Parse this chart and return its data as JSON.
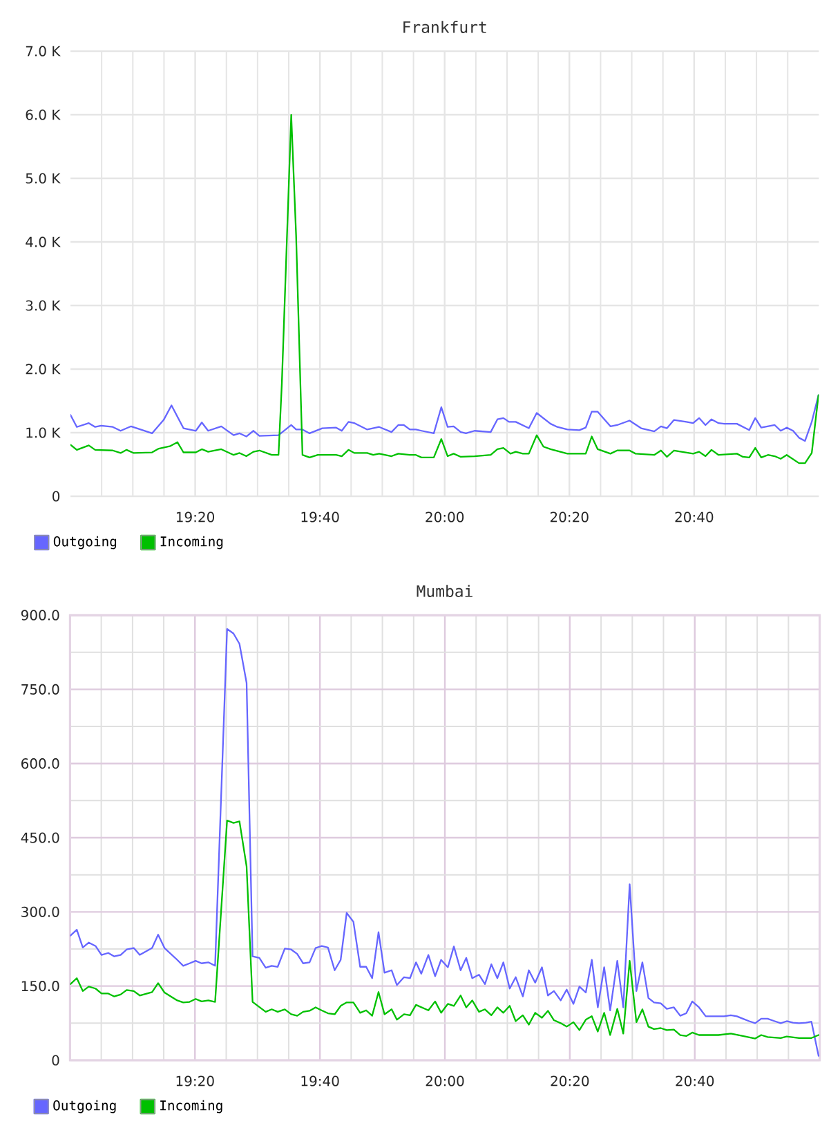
{
  "chart_data": [
    {
      "type": "line",
      "title": "Frankfurt",
      "xlim": [
        19,
        21
      ],
      "ylim": [
        0,
        7000
      ],
      "grid": true,
      "legend": "bottom left",
      "xticks": [
        {
          "value": 19.0833,
          "label": null
        },
        {
          "value": 19.1667,
          "label": null
        },
        {
          "value": 19.25,
          "label": null
        },
        {
          "value": 19.3333,
          "label": "19:20"
        },
        {
          "value": 19.4167,
          "label": null
        },
        {
          "value": 19.5,
          "label": null
        },
        {
          "value": 19.5833,
          "label": null
        },
        {
          "value": 19.6667,
          "label": "19:40"
        },
        {
          "value": 19.75,
          "label": null
        },
        {
          "value": 19.8333,
          "label": null
        },
        {
          "value": 19.9167,
          "label": null
        },
        {
          "value": 20,
          "label": "20:00"
        },
        {
          "value": 20.0833,
          "label": null
        },
        {
          "value": 20.1667,
          "label": null
        },
        {
          "value": 20.25,
          "label": null
        },
        {
          "value": 20.3333,
          "label": "20:20"
        },
        {
          "value": 20.4167,
          "label": null
        },
        {
          "value": 20.5,
          "label": null
        },
        {
          "value": 20.5833,
          "label": null
        },
        {
          "value": 20.6667,
          "label": "20:40"
        },
        {
          "value": 20.75,
          "label": null
        },
        {
          "value": 20.8333,
          "label": null
        },
        {
          "value": 20.9167,
          "label": null
        }
      ],
      "yticks": [
        0,
        {
          "value": 1000,
          "label": "1.0 K"
        },
        {
          "value": 2000,
          "label": "2.0 K"
        },
        {
          "value": 3000,
          "label": "3.0 K"
        },
        {
          "value": 4000,
          "label": "4.0 K"
        },
        {
          "value": 5000,
          "label": "5.0 K"
        },
        {
          "value": 6000,
          "label": "6.0 K"
        },
        {
          "value": 7000,
          "label": "7.0 K"
        }
      ],
      "series": [
        {
          "name": "Outgoing",
          "color": "#6666ff",
          "x": [
            19.0,
            19.017,
            19.049,
            19.066,
            19.082,
            19.113,
            19.134,
            19.162,
            19.218,
            19.249,
            19.27,
            19.302,
            19.335,
            19.351,
            19.368,
            19.403,
            19.436,
            19.452,
            19.47,
            19.489,
            19.505,
            19.556,
            19.59,
            19.603,
            19.62,
            19.639,
            19.673,
            19.71,
            19.725,
            19.743,
            19.759,
            19.793,
            19.825,
            19.858,
            19.876,
            19.891,
            19.907,
            19.923,
            19.938,
            19.971,
            19.991,
            20.008,
            20.024,
            20.043,
            20.057,
            20.08,
            20.123,
            20.141,
            20.157,
            20.172,
            20.19,
            20.225,
            20.246,
            20.283,
            20.301,
            20.328,
            20.36,
            20.377,
            20.393,
            20.409,
            20.443,
            20.461,
            20.494,
            20.525,
            20.56,
            20.578,
            20.594,
            20.613,
            20.646,
            20.664,
            20.68,
            20.697,
            20.713,
            20.732,
            20.747,
            20.781,
            20.814,
            20.83,
            20.846,
            20.882,
            20.898,
            20.914,
            20.931,
            20.947,
            20.963,
            20.981,
            20.999
          ],
          "values": [
            1280,
            1090,
            1150,
            1090,
            1110,
            1090,
            1030,
            1100,
            990,
            1200,
            1430,
            1070,
            1030,
            1160,
            1030,
            1100,
            960,
            990,
            940,
            1030,
            950,
            960,
            1120,
            1050,
            1050,
            990,
            1070,
            1080,
            1030,
            1170,
            1150,
            1050,
            1090,
            1010,
            1120,
            1120,
            1050,
            1050,
            1030,
            990,
            1400,
            1090,
            1100,
            1010,
            990,
            1030,
            1010,
            1210,
            1230,
            1170,
            1170,
            1070,
            1310,
            1140,
            1090,
            1050,
            1040,
            1080,
            1330,
            1330,
            1100,
            1120,
            1190,
            1070,
            1020,
            1100,
            1070,
            1200,
            1170,
            1150,
            1230,
            1120,
            1210,
            1150,
            1140,
            1140,
            1040,
            1230,
            1080,
            1120,
            1030,
            1080,
            1030,
            920,
            870,
            1170,
            1590
          ]
        },
        {
          "name": "Incoming",
          "color": "#00c000",
          "x": [
            19.0,
            19.017,
            19.049,
            19.066,
            19.113,
            19.134,
            19.15,
            19.169,
            19.218,
            19.236,
            19.267,
            19.286,
            19.302,
            19.335,
            19.351,
            19.368,
            19.403,
            19.436,
            19.452,
            19.47,
            19.489,
            19.505,
            19.538,
            19.556,
            19.565,
            19.59,
            19.603,
            19.62,
            19.639,
            19.661,
            19.71,
            19.725,
            19.743,
            19.759,
            19.793,
            19.809,
            19.825,
            19.858,
            19.876,
            19.907,
            19.923,
            19.938,
            19.971,
            19.991,
            20.008,
            20.024,
            20.043,
            20.08,
            20.123,
            20.141,
            20.157,
            20.176,
            20.19,
            20.209,
            20.225,
            20.246,
            20.264,
            20.283,
            20.328,
            20.377,
            20.393,
            20.409,
            20.443,
            20.461,
            20.494,
            20.51,
            20.56,
            20.578,
            20.594,
            20.613,
            20.664,
            20.68,
            20.697,
            20.713,
            20.732,
            20.781,
            20.797,
            20.814,
            20.83,
            20.846,
            20.864,
            20.882,
            20.898,
            20.914,
            20.947,
            20.963,
            20.981,
            20.999
          ],
          "values": [
            810,
            730,
            800,
            730,
            720,
            680,
            730,
            680,
            690,
            750,
            790,
            850,
            690,
            690,
            740,
            700,
            740,
            650,
            680,
            630,
            700,
            720,
            650,
            650,
            1790,
            6000,
            4100,
            650,
            610,
            650,
            650,
            630,
            730,
            680,
            680,
            650,
            670,
            630,
            670,
            650,
            650,
            610,
            610,
            900,
            630,
            670,
            620,
            630,
            650,
            740,
            760,
            670,
            700,
            670,
            670,
            960,
            780,
            740,
            670,
            670,
            940,
            740,
            670,
            720,
            720,
            670,
            650,
            720,
            620,
            720,
            670,
            700,
            630,
            730,
            650,
            670,
            620,
            610,
            760,
            610,
            650,
            630,
            590,
            650,
            520,
            520,
            680,
            1590
          ]
        }
      ]
    },
    {
      "type": "line",
      "title": "Mumbai",
      "xlim": [
        19,
        21
      ],
      "ylim": [
        0,
        900
      ],
      "grid": true,
      "legend": "bottom left",
      "xticks": [
        {
          "value": 19.0833,
          "label": null
        },
        {
          "value": 19.1667,
          "label": null
        },
        {
          "value": 19.25,
          "label": null
        },
        {
          "value": 19.3333,
          "label": "19:20"
        },
        {
          "value": 19.4167,
          "label": null
        },
        {
          "value": 19.5,
          "label": null
        },
        {
          "value": 19.5833,
          "label": null
        },
        {
          "value": 19.6667,
          "label": "19:40"
        },
        {
          "value": 19.75,
          "label": null
        },
        {
          "value": 19.8333,
          "label": null
        },
        {
          "value": 19.9167,
          "label": null
        },
        {
          "value": 20,
          "label": "20:00"
        },
        {
          "value": 20.0833,
          "label": null
        },
        {
          "value": 20.1667,
          "label": null
        },
        {
          "value": 20.25,
          "label": null
        },
        {
          "value": 20.3333,
          "label": "20:20"
        },
        {
          "value": 20.4167,
          "label": null
        },
        {
          "value": 20.5,
          "label": null
        },
        {
          "value": 20.5833,
          "label": null
        },
        {
          "value": 20.6667,
          "label": "20:40"
        },
        {
          "value": 20.75,
          "label": null
        },
        {
          "value": 20.8333,
          "label": null
        },
        {
          "value": 20.9167,
          "label": null
        }
      ],
      "yticks": [
        0,
        {
          "value": 75,
          "label": null
        },
        {
          "value": 150,
          "label": "150.0"
        },
        {
          "value": 225,
          "label": null
        },
        {
          "value": 300,
          "label": "300.0"
        },
        {
          "value": 375,
          "label": null
        },
        {
          "value": 450,
          "label": "450.0"
        },
        {
          "value": 525,
          "label": null
        },
        {
          "value": 600,
          "label": "600.0"
        },
        {
          "value": 675,
          "label": null
        },
        {
          "value": 750,
          "label": "750.0"
        },
        {
          "value": 825,
          "label": null
        },
        {
          "value": 900,
          "label": "900.0"
        }
      ],
      "series": [
        {
          "name": "Outgoing",
          "color": "#6666ff",
          "x": [
            19.001,
            19.018,
            19.034,
            19.05,
            19.068,
            19.084,
            19.102,
            19.118,
            19.135,
            19.151,
            19.17,
            19.186,
            19.219,
            19.235,
            19.252,
            19.286,
            19.302,
            19.319,
            19.335,
            19.351,
            19.369,
            19.387,
            19.419,
            19.436,
            19.452,
            19.471,
            19.487,
            19.505,
            19.522,
            19.538,
            19.554,
            19.573,
            19.59,
            19.606,
            19.622,
            19.639,
            19.655,
            19.671,
            19.688,
            19.706,
            19.722,
            19.738,
            19.756,
            19.774,
            19.79,
            19.806,
            19.823,
            19.839,
            19.858,
            19.872,
            19.891,
            19.907,
            19.923,
            19.937,
            19.956,
            19.974,
            19.99,
            20.008,
            20.024,
            20.042,
            20.057,
            20.073,
            20.091,
            20.107,
            20.124,
            20.14,
            20.156,
            20.173,
            20.189,
            20.208,
            20.224,
            20.241,
            20.259,
            20.275,
            20.291,
            20.309,
            20.325,
            20.343,
            20.359,
            20.376,
            20.392,
            20.408,
            20.425,
            20.441,
            20.46,
            20.476,
            20.493,
            20.511,
            20.527,
            20.543,
            20.558,
            20.576,
            20.592,
            20.611,
            20.628,
            20.644,
            20.66,
            20.678,
            20.696,
            20.712,
            20.73,
            20.745,
            20.763,
            20.779,
            20.795,
            20.812,
            20.828,
            20.844,
            20.861,
            20.88,
            20.896,
            20.912,
            20.929,
            20.945,
            20.963,
            20.978,
            20.997
          ],
          "values": [
            252,
            264,
            228,
            238,
            231,
            213,
            217,
            210,
            213,
            224,
            227,
            213,
            227,
            254,
            227,
            203,
            191,
            196,
            201,
            196,
            198,
            191,
            872,
            863,
            842,
            763,
            210,
            207,
            187,
            191,
            189,
            226,
            224,
            215,
            196,
            198,
            227,
            231,
            228,
            182,
            203,
            298,
            280,
            189,
            189,
            166,
            259,
            177,
            182,
            152,
            168,
            166,
            198,
            175,
            213,
            170,
            203,
            188,
            230,
            182,
            207,
            166,
            173,
            154,
            194,
            166,
            198,
            145,
            168,
            129,
            182,
            157,
            188,
            131,
            140,
            121,
            143,
            114,
            149,
            137,
            203,
            107,
            188,
            101,
            201,
            107,
            356,
            140,
            198,
            126,
            117,
            115,
            104,
            107,
            90,
            95,
            119,
            107,
            89,
            89,
            89,
            89,
            91,
            89,
            84,
            79,
            75,
            84,
            84,
            79,
            75,
            79,
            76,
            75,
            76,
            78,
            9
          ]
        },
        {
          "name": "Incoming",
          "color": "#00c000",
          "x": [
            19.001,
            19.018,
            19.034,
            19.05,
            19.068,
            19.084,
            19.102,
            19.118,
            19.135,
            19.151,
            19.17,
            19.186,
            19.219,
            19.235,
            19.252,
            19.286,
            19.302,
            19.319,
            19.335,
            19.351,
            19.369,
            19.387,
            19.419,
            19.436,
            19.452,
            19.471,
            19.487,
            19.522,
            19.538,
            19.554,
            19.573,
            19.59,
            19.606,
            19.622,
            19.639,
            19.655,
            19.671,
            19.688,
            19.706,
            19.722,
            19.738,
            19.756,
            19.774,
            19.79,
            19.806,
            19.823,
            19.839,
            19.858,
            19.872,
            19.891,
            19.907,
            19.923,
            19.956,
            19.974,
            19.99,
            20.008,
            20.024,
            20.042,
            20.057,
            20.073,
            20.091,
            20.107,
            20.124,
            20.14,
            20.156,
            20.173,
            20.189,
            20.208,
            20.224,
            20.241,
            20.259,
            20.275,
            20.291,
            20.309,
            20.325,
            20.343,
            20.359,
            20.376,
            20.392,
            20.408,
            20.425,
            20.441,
            20.46,
            20.476,
            20.493,
            20.511,
            20.527,
            20.543,
            20.558,
            20.576,
            20.592,
            20.611,
            20.628,
            20.644,
            20.66,
            20.678,
            20.696,
            20.73,
            20.763,
            20.795,
            20.828,
            20.844,
            20.861,
            20.896,
            20.912,
            20.945,
            20.978,
            20.997
          ],
          "values": [
            154,
            166,
            140,
            149,
            145,
            135,
            135,
            129,
            133,
            142,
            140,
            131,
            138,
            156,
            137,
            121,
            117,
            118,
            124,
            119,
            121,
            118,
            485,
            480,
            483,
            392,
            118,
            98,
            103,
            98,
            103,
            93,
            90,
            98,
            100,
            107,
            101,
            95,
            93,
            110,
            117,
            117,
            96,
            101,
            90,
            138,
            93,
            103,
            82,
            93,
            91,
            112,
            101,
            119,
            96,
            114,
            110,
            131,
            107,
            121,
            98,
            103,
            91,
            107,
            96,
            110,
            79,
            91,
            72,
            96,
            86,
            100,
            81,
            75,
            68,
            77,
            61,
            82,
            89,
            58,
            96,
            51,
            104,
            54,
            201,
            77,
            103,
            68,
            63,
            65,
            61,
            62,
            51,
            49,
            56,
            51,
            51,
            51,
            54,
            49,
            44,
            51,
            47,
            45,
            48,
            45,
            45,
            51
          ]
        }
      ]
    }
  ]
}
